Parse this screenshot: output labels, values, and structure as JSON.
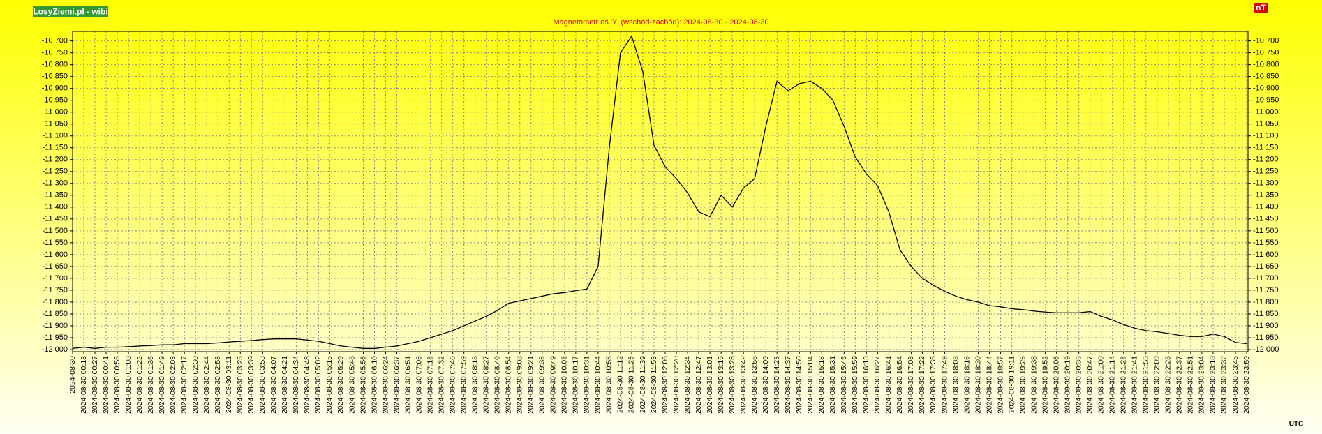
{
  "chart_data": {
    "type": "line",
    "title": "Magnetometr oś 'Y' (wschód-zachód): 2024-08-30 - 2024-08-30",
    "source_label": "LosyZiemi.pl - wibi",
    "unit_label": "nT",
    "timezone_label": "UTC",
    "categories": [
      "2024-08-30",
      "2024-08-30 00:13",
      "2024-08-30 00:27",
      "2024-08-30 00:41",
      "2024-08-30 00:55",
      "2024-08-30 01:08",
      "2024-08-30 01:22",
      "2024-08-30 01:36",
      "2024-08-30 01:49",
      "2024-08-30 02:03",
      "2024-08-30 02:17",
      "2024-08-30 02:30",
      "2024-08-30 02:44",
      "2024-08-30 02:58",
      "2024-08-30 03:11",
      "2024-08-30 03:25",
      "2024-08-30 03:39",
      "2024-08-30 03:53",
      "2024-08-30 04:07",
      "2024-08-30 04:21",
      "2024-08-30 04:34",
      "2024-08-30 04:48",
      "2024-08-30 05:02",
      "2024-08-30 05:15",
      "2024-08-30 05:29",
      "2024-08-30 05:43",
      "2024-08-30 05:56",
      "2024-08-30 06:10",
      "2024-08-30 06:24",
      "2024-08-30 06:37",
      "2024-08-30 06:51",
      "2024-08-30 07:05",
      "2024-08-30 07:18",
      "2024-08-30 07:32",
      "2024-08-30 07:46",
      "2024-08-30 07:59",
      "2024-08-30 08:13",
      "2024-08-30 08:27",
      "2024-08-30 08:40",
      "2024-08-30 08:54",
      "2024-08-30 09:08",
      "2024-08-30 09:21",
      "2024-08-30 09:35",
      "2024-08-30 09:49",
      "2024-08-30 10:03",
      "2024-08-30 10:17",
      "2024-08-30 10:31",
      "2024-08-30 10:44",
      "2024-08-30 10:58",
      "2024-08-30 11:12",
      "2024-08-30 11:25",
      "2024-08-30 11:39",
      "2024-08-30 11:53",
      "2024-08-30 12:06",
      "2024-08-30 12:20",
      "2024-08-30 12:34",
      "2024-08-30 12:47",
      "2024-08-30 13:01",
      "2024-08-30 13:15",
      "2024-08-30 13:28",
      "2024-08-30 13:42",
      "2024-08-30 13:56",
      "2024-08-30 14:09",
      "2024-08-30 14:23",
      "2024-08-30 14:37",
      "2024-08-30 14:50",
      "2024-08-30 15:04",
      "2024-08-30 15:18",
      "2024-08-30 15:31",
      "2024-08-30 15:45",
      "2024-08-30 15:59",
      "2024-08-30 16:13",
      "2024-08-30 16:27",
      "2024-08-30 16:41",
      "2024-08-30 16:54",
      "2024-08-30 17:08",
      "2024-08-30 17:22",
      "2024-08-30 17:35",
      "2024-08-30 17:49",
      "2024-08-30 18:03",
      "2024-08-30 18:16",
      "2024-08-30 18:30",
      "2024-08-30 18:44",
      "2024-08-30 18:57",
      "2024-08-30 19:11",
      "2024-08-30 19:25",
      "2024-08-30 19:38",
      "2024-08-30 19:52",
      "2024-08-30 20:06",
      "2024-08-30 20:19",
      "2024-08-30 20:33",
      "2024-08-30 20:47",
      "2024-08-30 21:00",
      "2024-08-30 21:14",
      "2024-08-30 21:28",
      "2024-08-30 21:41",
      "2024-08-30 21:55",
      "2024-08-30 22:09",
      "2024-08-30 22:23",
      "2024-08-30 22:37",
      "2024-08-30 22:51",
      "2024-08-30 23:04",
      "2024-08-30 23:18",
      "2024-08-30 23:32",
      "2024-08-30 23:45",
      "2024-08-30 23:59"
    ],
    "values": [
      -11995,
      -11990,
      -11995,
      -11990,
      -11990,
      -11988,
      -11985,
      -11983,
      -11980,
      -11980,
      -11975,
      -11975,
      -11975,
      -11972,
      -11968,
      -11965,
      -11962,
      -11958,
      -11955,
      -11955,
      -11955,
      -11960,
      -11965,
      -11975,
      -11985,
      -11990,
      -11995,
      -11995,
      -11990,
      -11985,
      -11975,
      -11965,
      -11950,
      -11935,
      -11920,
      -11900,
      -11880,
      -11860,
      -11835,
      -11805,
      -11795,
      -11785,
      -11775,
      -11765,
      -11760,
      -11752,
      -11745,
      -11650,
      -11150,
      -10750,
      -10680,
      -10830,
      -11140,
      -11230,
      -11280,
      -11340,
      -11420,
      -11440,
      -11350,
      -11400,
      -11320,
      -11280,
      -11060,
      -10870,
      -10910,
      -10880,
      -10870,
      -10900,
      -10950,
      -11060,
      -11190,
      -11260,
      -11310,
      -11420,
      -11580,
      -11650,
      -11700,
      -11730,
      -11755,
      -11775,
      -11790,
      -11800,
      -11815,
      -11820,
      -11828,
      -11832,
      -11838,
      -11842,
      -11845,
      -11845,
      -11845,
      -11840,
      -11860,
      -11875,
      -11895,
      -11910,
      -11920,
      -11925,
      -11932,
      -11940,
      -11945,
      -11945,
      -11935,
      -11945,
      -11970,
      -11975
    ],
    "color": "#000000",
    "ylim": [
      -12000,
      -10660
    ],
    "yticks": [
      {
        "value": -10700,
        "label": "-10 700"
      },
      {
        "value": -10750,
        "label": "-10 750"
      },
      {
        "value": -10800,
        "label": "-10 800"
      },
      {
        "value": -10850,
        "label": "-10 850"
      },
      {
        "value": -10900,
        "label": "-10 900"
      },
      {
        "value": -10950,
        "label": "-10 950"
      },
      {
        "value": -11000,
        "label": "-11 000"
      },
      {
        "value": -11050,
        "label": "-11 050"
      },
      {
        "value": -11100,
        "label": "-11 100"
      },
      {
        "value": -11150,
        "label": "-11 150"
      },
      {
        "value": -11200,
        "label": "-11 200"
      },
      {
        "value": -11250,
        "label": "-11 250"
      },
      {
        "value": -11300,
        "label": "-11 300"
      },
      {
        "value": -11350,
        "label": "-11 350"
      },
      {
        "value": -11400,
        "label": "-11 400"
      },
      {
        "value": -11450,
        "label": "-11 450"
      },
      {
        "value": -11500,
        "label": "-11 500"
      },
      {
        "value": -11550,
        "label": "-11 550"
      },
      {
        "value": -11600,
        "label": "-11 600"
      },
      {
        "value": -11650,
        "label": "-11 650"
      },
      {
        "value": -11700,
        "label": "-11 700"
      },
      {
        "value": -11750,
        "label": "-11 750"
      },
      {
        "value": -11800,
        "label": "-11 800"
      },
      {
        "value": -11850,
        "label": "-11 850"
      },
      {
        "value": -11900,
        "label": "-11 900"
      },
      {
        "value": -11950,
        "label": "-11 950"
      },
      {
        "value": -12000,
        "label": "-12 000"
      }
    ],
    "grid": true
  }
}
